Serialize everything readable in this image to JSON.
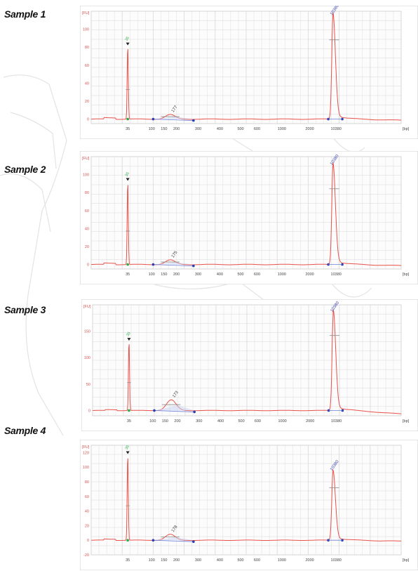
{
  "chart_data": [
    {
      "type": "line",
      "label": "Sample 1",
      "y_unit": "[FU]",
      "x_unit": "[bp]",
      "ylim": [
        -5,
        120
      ],
      "yticks": [
        0,
        20,
        40,
        60,
        80,
        100
      ],
      "x_ticks": [
        "35",
        "100",
        "150",
        "200",
        "300",
        "400",
        "500",
        "600",
        "1000",
        "2000",
        "10380"
      ],
      "peaks": [
        {
          "label": "35",
          "bp": 35,
          "height": 82
        },
        {
          "label": "177",
          "bp": 177,
          "height": 5
        },
        {
          "label": "10380",
          "bp": 10380,
          "height": 113
        }
      ],
      "grid": true
    },
    {
      "type": "line",
      "label": "Sample 2",
      "y_unit": "[FU]",
      "x_unit": "[bp]",
      "ylim": [
        -5,
        120
      ],
      "yticks": [
        0,
        20,
        40,
        60,
        80,
        100
      ],
      "x_ticks": [
        "35",
        "100",
        "150",
        "200",
        "300",
        "400",
        "500",
        "600",
        "1000",
        "2000",
        "10380"
      ],
      "peaks": [
        {
          "label": "35",
          "bp": 35,
          "height": 93
        },
        {
          "label": "175",
          "bp": 175,
          "height": 5
        },
        {
          "label": "10380",
          "bp": 10380,
          "height": 108
        }
      ],
      "grid": true
    },
    {
      "type": "line",
      "label": "Sample 3",
      "y_unit": "[FU]",
      "x_unit": "[bp]",
      "ylim": [
        -10,
        200
      ],
      "yticks": [
        0,
        50,
        100,
        150
      ],
      "x_ticks": [
        "35",
        "100",
        "150",
        "200",
        "300",
        "400",
        "500",
        "600",
        "1000",
        "2000",
        "10380"
      ],
      "peaks": [
        {
          "label": "35",
          "bp": 35,
          "height": 132
        },
        {
          "label": "173",
          "bp": 173,
          "height": 20
        },
        {
          "label": "10380",
          "bp": 10380,
          "height": 182
        }
      ],
      "grid": true
    },
    {
      "type": "line",
      "label": "Sample 4",
      "y_unit": "[FU]",
      "x_unit": "[bp]",
      "ylim": [
        -20,
        130
      ],
      "yticks": [
        -20,
        0,
        20,
        40,
        60,
        80,
        100,
        120
      ],
      "x_ticks": [
        "35",
        "100",
        "150",
        "200",
        "300",
        "400",
        "500",
        "600",
        "1000",
        "2000",
        "10380"
      ],
      "peaks": [
        {
          "label": "35",
          "bp": 35,
          "height": 118
        },
        {
          "label": "178",
          "bp": 178,
          "height": 8
        },
        {
          "label": "10380",
          "bp": 10380,
          "height": 92
        }
      ],
      "grid": true
    }
  ],
  "colors": {
    "trace": "#e8524b",
    "axis_text": "#e05050",
    "grid": "#d8d8d8",
    "baseline": "#6b7fd7",
    "marker_blue": "#2a3fb0",
    "marker_green": "#2ea84a",
    "peak_label_top": "#3a43a8",
    "peak_label_small": "#333333"
  }
}
